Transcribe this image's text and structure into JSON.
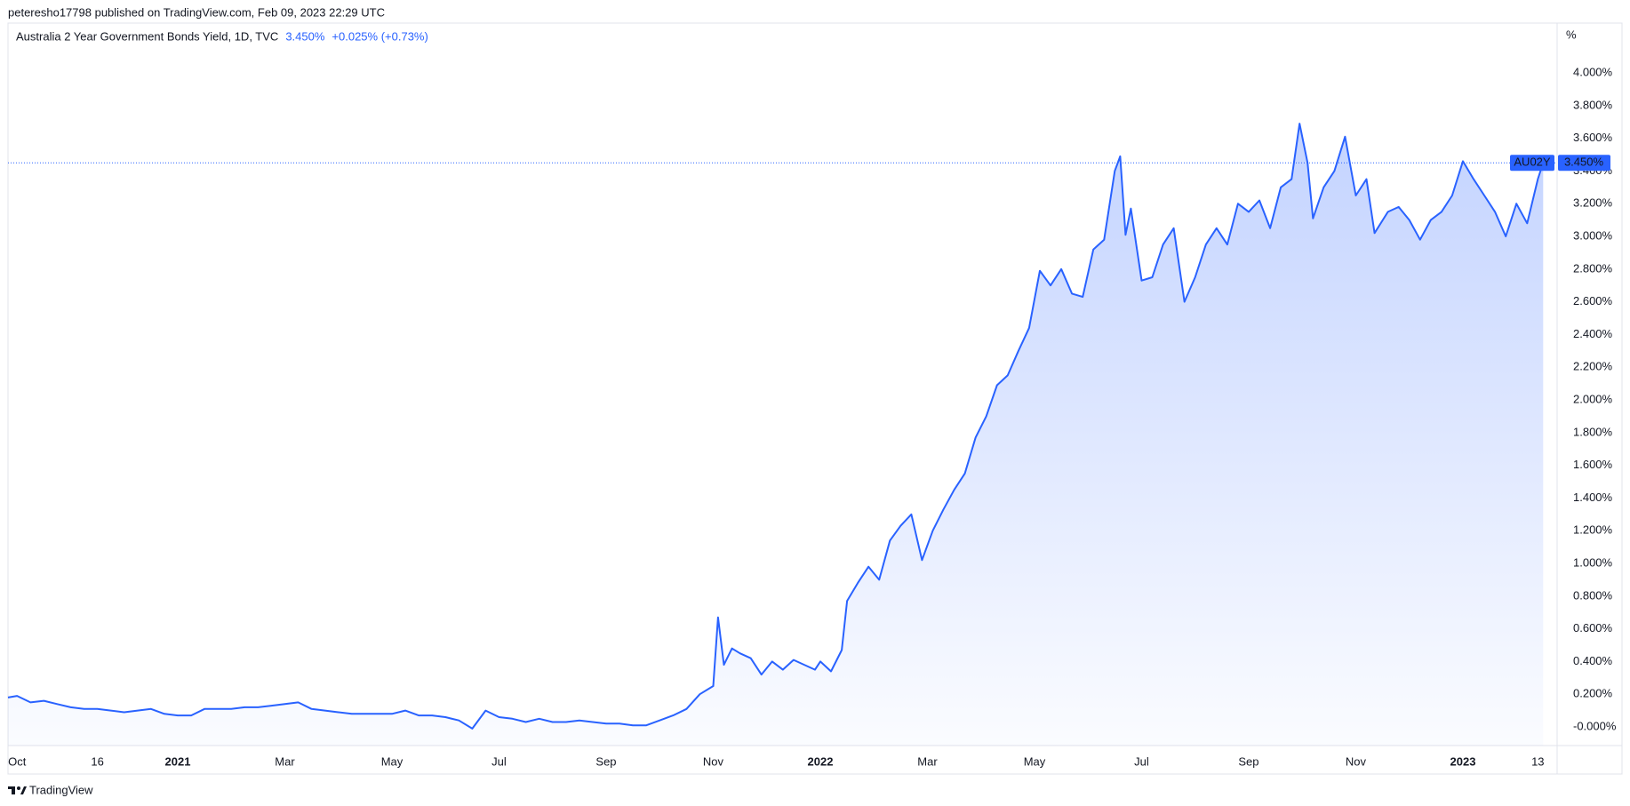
{
  "header": {
    "published": "peteresho17798 published on TradingView.com, Feb 09, 2023 22:29 UTC"
  },
  "footer": {
    "brand": "TradingView"
  },
  "chart_data": {
    "type": "area",
    "unit_label": "%",
    "symbol": "AU02Y",
    "last": {
      "value": 3.45,
      "label": "3.450%"
    },
    "change_text": "+0.025% (+0.73%)",
    "grid": false,
    "xlim": [
      -0.17,
      28.76
    ],
    "ylim": [
      -0.114,
      4.299
    ],
    "xticks": [
      {
        "value": 0,
        "label": "Oct"
      },
      {
        "value": 1.5,
        "label": "16"
      },
      {
        "value": 3,
        "label": "2021"
      },
      {
        "value": 5,
        "label": "Mar"
      },
      {
        "value": 7,
        "label": "May"
      },
      {
        "value": 9,
        "label": "Jul"
      },
      {
        "value": 11,
        "label": "Sep"
      },
      {
        "value": 13,
        "label": "Nov"
      },
      {
        "value": 15,
        "label": "2022"
      },
      {
        "value": 17,
        "label": "Mar"
      },
      {
        "value": 19,
        "label": "May"
      },
      {
        "value": 21,
        "label": "Jul"
      },
      {
        "value": 23,
        "label": "Sep"
      },
      {
        "value": 25,
        "label": "Nov"
      },
      {
        "value": 27,
        "label": "2023"
      },
      {
        "value": 28.4,
        "label": "13"
      }
    ],
    "yticks": [
      {
        "value": 0,
        "label": "-0.000%"
      },
      {
        "value": 0.2,
        "label": "0.200%"
      },
      {
        "value": 0.4,
        "label": "0.400%"
      },
      {
        "value": 0.6,
        "label": "0.600%"
      },
      {
        "value": 0.8,
        "label": "0.800%"
      },
      {
        "value": 1.0,
        "label": "1.000%"
      },
      {
        "value": 1.2,
        "label": "1.200%"
      },
      {
        "value": 1.4,
        "label": "1.400%"
      },
      {
        "value": 1.6,
        "label": "1.600%"
      },
      {
        "value": 1.8,
        "label": "1.800%"
      },
      {
        "value": 2.0,
        "label": "2.000%"
      },
      {
        "value": 2.2,
        "label": "2.200%"
      },
      {
        "value": 2.4,
        "label": "2.400%"
      },
      {
        "value": 2.6,
        "label": "2.600%"
      },
      {
        "value": 2.8,
        "label": "2.800%"
      },
      {
        "value": 3.0,
        "label": "3.000%"
      },
      {
        "value": 3.2,
        "label": "3.200%"
      },
      {
        "value": 3.4,
        "label": "3.400%"
      },
      {
        "value": 3.6,
        "label": "3.600%"
      },
      {
        "value": 3.8,
        "label": "3.800%"
      },
      {
        "value": 4.0,
        "label": "4.000%"
      }
    ],
    "x": [
      -0.17,
      0,
      0.25,
      0.5,
      0.75,
      1,
      1.25,
      1.5,
      1.75,
      2,
      2.25,
      2.5,
      2.75,
      3,
      3.25,
      3.5,
      3.75,
      4,
      4.25,
      4.5,
      4.75,
      5,
      5.25,
      5.5,
      5.75,
      6,
      6.25,
      6.5,
      6.75,
      7,
      7.25,
      7.5,
      7.75,
      8,
      8.25,
      8.5,
      8.75,
      9,
      9.25,
      9.5,
      9.75,
      10,
      10.25,
      10.5,
      10.75,
      11,
      11.25,
      11.5,
      11.75,
      12,
      12.25,
      12.5,
      12.75,
      13,
      13.09,
      13.2,
      13.35,
      13.5,
      13.7,
      13.9,
      14.1,
      14.3,
      14.5,
      14.7,
      14.9,
      15,
      15.2,
      15.4,
      15.5,
      15.7,
      15.9,
      16.1,
      16.3,
      16.5,
      16.7,
      16.9,
      17.1,
      17.3,
      17.5,
      17.7,
      17.9,
      18.1,
      18.3,
      18.5,
      18.7,
      18.9,
      19.1,
      19.3,
      19.5,
      19.7,
      19.9,
      20.1,
      20.3,
      20.5,
      20.6,
      20.7,
      20.8,
      21,
      21.2,
      21.4,
      21.6,
      21.8,
      22,
      22.2,
      22.4,
      22.6,
      22.8,
      23,
      23.2,
      23.4,
      23.6,
      23.8,
      23.95,
      24.1,
      24.2,
      24.4,
      24.6,
      24.8,
      25,
      25.2,
      25.35,
      25.6,
      25.8,
      26,
      26.2,
      26.4,
      26.6,
      26.8,
      27,
      27.2,
      27.4,
      27.6,
      27.8,
      28,
      28.2,
      28.4,
      28.5
    ],
    "series": [
      {
        "name": "Australia 2 Year Government Bonds Yield, 1D, TVC",
        "color": "#2962ff",
        "values": [
          0.18,
          0.19,
          0.15,
          0.16,
          0.14,
          0.12,
          0.11,
          0.11,
          0.1,
          0.09,
          0.1,
          0.11,
          0.08,
          0.07,
          0.07,
          0.11,
          0.11,
          0.11,
          0.12,
          0.12,
          0.13,
          0.14,
          0.15,
          0.11,
          0.1,
          0.09,
          0.08,
          0.08,
          0.08,
          0.08,
          0.1,
          0.07,
          0.07,
          0.06,
          0.04,
          -0.01,
          0.1,
          0.06,
          0.05,
          0.03,
          0.05,
          0.03,
          0.03,
          0.04,
          0.03,
          0.02,
          0.02,
          0.01,
          0.01,
          0.04,
          0.07,
          0.11,
          0.2,
          0.25,
          0.67,
          0.38,
          0.48,
          0.45,
          0.42,
          0.32,
          0.4,
          0.35,
          0.41,
          0.38,
          0.35,
          0.4,
          0.34,
          0.47,
          0.77,
          0.88,
          0.98,
          0.9,
          1.14,
          1.23,
          1.3,
          1.02,
          1.2,
          1.33,
          1.45,
          1.55,
          1.77,
          1.9,
          2.09,
          2.15,
          2.3,
          2.44,
          2.79,
          2.7,
          2.8,
          2.65,
          2.63,
          2.92,
          2.98,
          3.4,
          3.49,
          3.01,
          3.17,
          2.73,
          2.75,
          2.95,
          3.05,
          2.6,
          2.75,
          2.95,
          3.05,
          2.95,
          3.2,
          3.15,
          3.22,
          3.05,
          3.3,
          3.35,
          3.69,
          3.45,
          3.11,
          3.3,
          3.4,
          3.61,
          3.25,
          3.35,
          3.02,
          3.15,
          3.18,
          3.1,
          2.98,
          3.1,
          3.15,
          3.25,
          3.46,
          3.35,
          3.25,
          3.15,
          3.0,
          3.2,
          3.08,
          3.35,
          3.45
        ]
      }
    ]
  }
}
